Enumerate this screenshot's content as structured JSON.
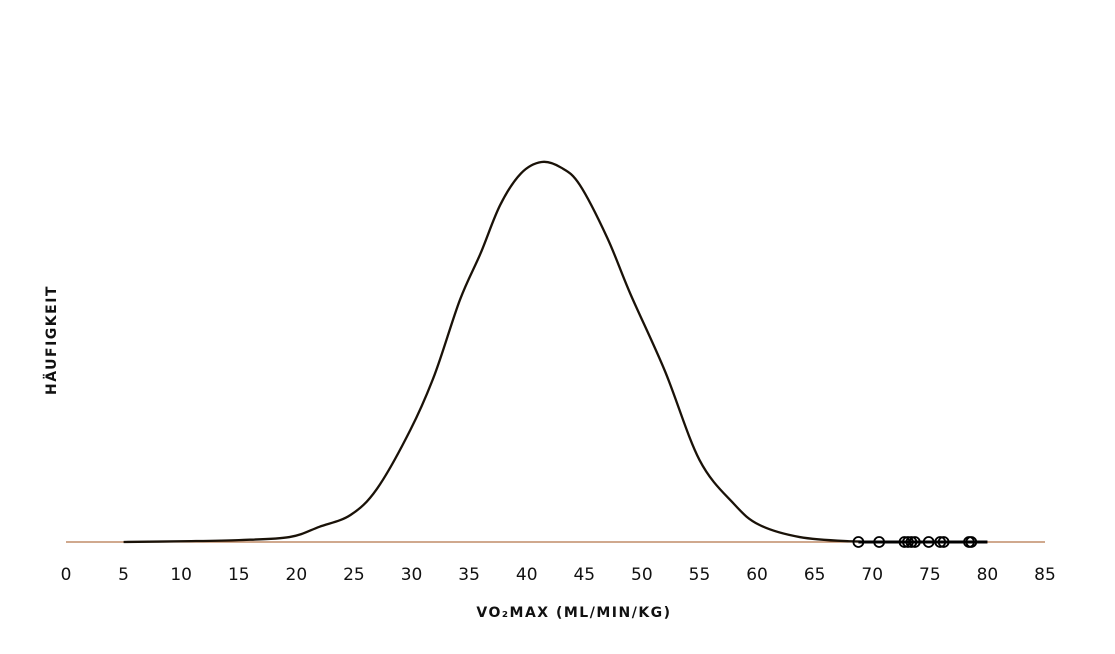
{
  "chart_data": {
    "type": "area",
    "xlabel": "VO₂MAX (ML/MIN/KG)",
    "ylabel": "HÄUFIGKEIT",
    "xlim": [
      0,
      85
    ],
    "ylim": [
      0,
      1
    ],
    "x_ticks": [
      0,
      5,
      10,
      15,
      20,
      25,
      30,
      35,
      40,
      45,
      50,
      55,
      60,
      65,
      70,
      75,
      80,
      85
    ],
    "grid": false,
    "density_curve": {
      "x": [
        5,
        10,
        15,
        19.4,
        22,
        24.7,
        27,
        29.9,
        32,
        34.2,
        36,
        37.7,
        39.5,
        41.3,
        43,
        44.6,
        47,
        49,
        52,
        55,
        58,
        60.2,
        63.7,
        68,
        72,
        80
      ],
      "y": [
        0,
        0.002,
        0.005,
        0.013,
        0.04,
        0.071,
        0.14,
        0.295,
        0.44,
        0.637,
        0.76,
        0.887,
        0.97,
        1.0,
        0.985,
        0.94,
        0.8,
        0.653,
        0.45,
        0.216,
        0.1,
        0.045,
        0.013,
        0.002,
        0.001,
        0
      ]
    },
    "rug_points": [
      68.8,
      70.6,
      72.8,
      73.1,
      73.4,
      73.7,
      74.9,
      75.9,
      76.2,
      78.4,
      78.6
    ],
    "colors": {
      "curve": "#1a1208",
      "axis": "#b5764a",
      "rug": "#000000"
    }
  }
}
